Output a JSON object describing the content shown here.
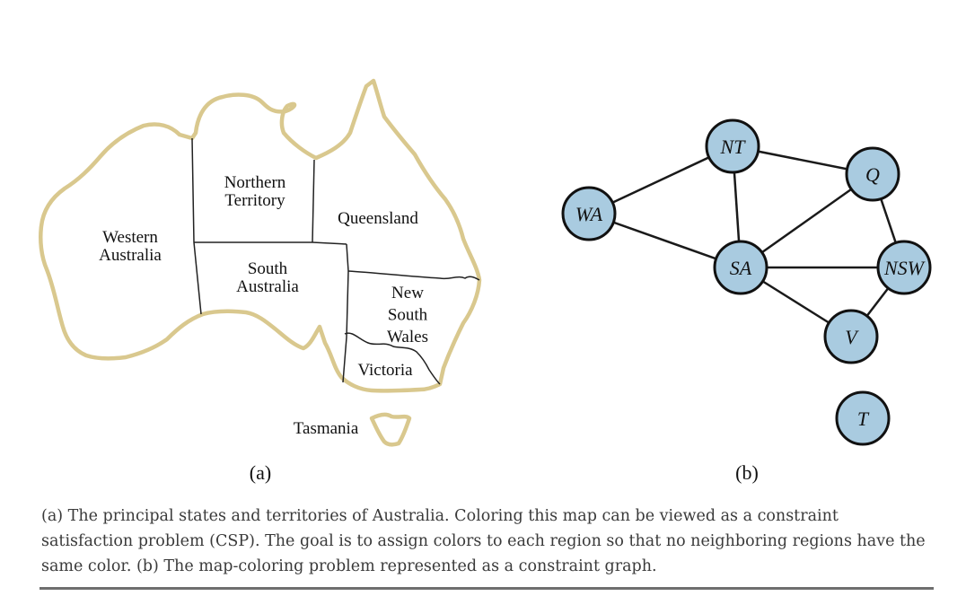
{
  "map": {
    "regions": [
      {
        "id": "wa",
        "lines": [
          "Western",
          "Australia"
        ]
      },
      {
        "id": "nt",
        "lines": [
          "Northern",
          "Territory"
        ]
      },
      {
        "id": "qld",
        "lines": [
          "Queensland"
        ]
      },
      {
        "id": "sa",
        "lines": [
          "South",
          "Australia"
        ]
      },
      {
        "id": "nsw",
        "lines": [
          "New",
          "South",
          "Wales"
        ]
      },
      {
        "id": "vic",
        "lines": [
          "Victoria"
        ]
      },
      {
        "id": "tas",
        "lines": [
          "Tasmania"
        ]
      }
    ],
    "panel_label": "(a)",
    "outline_color": "#d9c88e"
  },
  "graph": {
    "nodes": [
      {
        "id": "WA",
        "label": "WA"
      },
      {
        "id": "NT",
        "label": "NT"
      },
      {
        "id": "Q",
        "label": "Q"
      },
      {
        "id": "SA",
        "label": "SA"
      },
      {
        "id": "NSW",
        "label": "NSW"
      },
      {
        "id": "V",
        "label": "V"
      },
      {
        "id": "T",
        "label": "T"
      }
    ],
    "edges": [
      [
        "WA",
        "NT"
      ],
      [
        "WA",
        "SA"
      ],
      [
        "NT",
        "SA"
      ],
      [
        "NT",
        "Q"
      ],
      [
        "SA",
        "Q"
      ],
      [
        "SA",
        "NSW"
      ],
      [
        "SA",
        "V"
      ],
      [
        "Q",
        "NSW"
      ],
      [
        "NSW",
        "V"
      ]
    ],
    "node_color": "#a9cbe0",
    "panel_label": "(b)"
  },
  "caption": "(a) The principal states and territories of Australia. Coloring this map can be viewed as a constraint satisfaction problem (CSP). The goal is to assign colors to each region so that no neighboring regions have the same color. (b) The map-coloring problem represented as a constraint graph."
}
